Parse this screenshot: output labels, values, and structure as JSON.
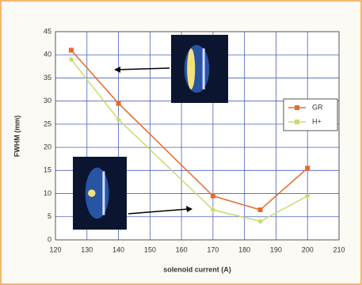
{
  "chart_data": {
    "type": "line",
    "x_label": "solenoid current (A)",
    "y_label": "FWHM (mm)",
    "x": [
      125,
      140,
      170,
      185,
      200
    ],
    "series": [
      {
        "name": "GR",
        "color": "#e8692a",
        "values": [
          41,
          29.5,
          9.5,
          6.5,
          15.5
        ]
      },
      {
        "name": "H+",
        "color": "#c6dd6a",
        "values": [
          39,
          26,
          6.5,
          4,
          9.5
        ]
      }
    ],
    "xlim": [
      120,
      210
    ],
    "xticks": [
      120,
      130,
      140,
      150,
      160,
      170,
      180,
      190,
      200,
      210
    ],
    "ylim": [
      0,
      45
    ],
    "yticks": [
      0,
      5,
      10,
      15,
      20,
      25,
      30,
      35,
      40,
      45
    ],
    "grid": true,
    "legend": "right"
  }
}
